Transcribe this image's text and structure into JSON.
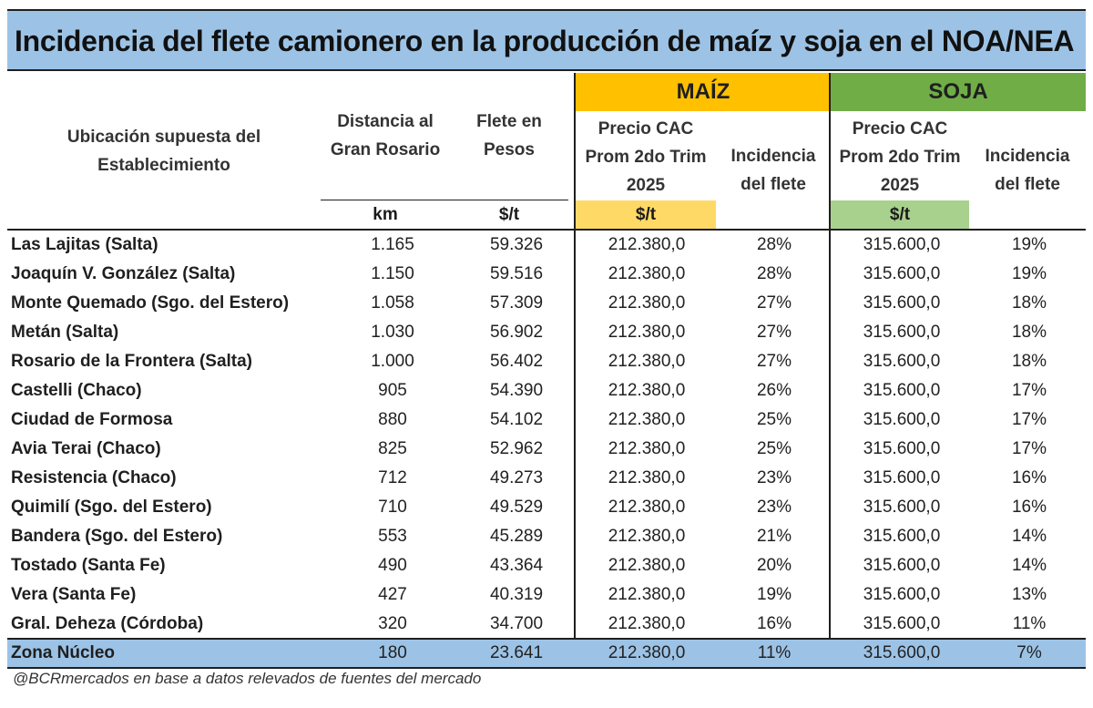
{
  "title": "Incidencia del flete camionero en la producción de maíz y soja en el NOA/NEA",
  "headers": {
    "ubicacion": [
      "Ubicación supuesta del",
      "Establecimiento"
    ],
    "distancia": [
      "Distancia al",
      "Gran Rosario"
    ],
    "flete": [
      "Flete en",
      "Pesos"
    ],
    "precio": [
      "Precio CAC",
      "Prom 2do Trim",
      "2025"
    ],
    "incidencia": [
      "Incidencia",
      "del flete"
    ],
    "maiz": "MAÍZ",
    "soja": "SOJA",
    "units": {
      "km": "km",
      "flete": "$/t",
      "precio_maiz": "$/t",
      "precio_soja": "$/t"
    }
  },
  "colors": {
    "title_bg": "#9cc3e6",
    "maiz_band": "#ffc000",
    "maiz_unit": "#ffd966",
    "soja_band": "#70ad47",
    "soja_unit": "#a9d18e",
    "highlight_row": "#9cc3e6"
  },
  "chart_data": {
    "type": "table",
    "columns": [
      "Ubicación supuesta del Establecimiento",
      "Distancia al Gran Rosario (km)",
      "Flete en Pesos ($/t)",
      "MAÍZ Precio CAC Prom 2do Trim 2025 ($/t)",
      "MAÍZ Incidencia del flete",
      "SOJA Precio CAC Prom 2do Trim 2025 ($/t)",
      "SOJA Incidencia del flete"
    ],
    "rows": [
      [
        "Las Lajitas (Salta)",
        "1.165",
        "59.326",
        "212.380,0",
        "28%",
        "315.600,0",
        "19%"
      ],
      [
        "Joaquín V. González (Salta)",
        "1.150",
        "59.516",
        "212.380,0",
        "28%",
        "315.600,0",
        "19%"
      ],
      [
        "Monte Quemado (Sgo. del Estero)",
        "1.058",
        "57.309",
        "212.380,0",
        "27%",
        "315.600,0",
        "18%"
      ],
      [
        "Metán (Salta)",
        "1.030",
        "56.902",
        "212.380,0",
        "27%",
        "315.600,0",
        "18%"
      ],
      [
        "Rosario de la Frontera (Salta)",
        "1.000",
        "56.402",
        "212.380,0",
        "27%",
        "315.600,0",
        "18%"
      ],
      [
        "Castelli (Chaco)",
        "905",
        "54.390",
        "212.380,0",
        "26%",
        "315.600,0",
        "17%"
      ],
      [
        "Ciudad de Formosa",
        "880",
        "54.102",
        "212.380,0",
        "25%",
        "315.600,0",
        "17%"
      ],
      [
        "Avia Terai (Chaco)",
        "825",
        "52.962",
        "212.380,0",
        "25%",
        "315.600,0",
        "17%"
      ],
      [
        "Resistencia (Chaco)",
        "712",
        "49.273",
        "212.380,0",
        "23%",
        "315.600,0",
        "16%"
      ],
      [
        "Quimilí (Sgo. del Estero)",
        "710",
        "49.529",
        "212.380,0",
        "23%",
        "315.600,0",
        "16%"
      ],
      [
        "Bandera (Sgo. del Estero)",
        "553",
        "45.289",
        "212.380,0",
        "21%",
        "315.600,0",
        "14%"
      ],
      [
        "Tostado (Santa Fe)",
        "490",
        "43.364",
        "212.380,0",
        "20%",
        "315.600,0",
        "14%"
      ],
      [
        "Vera (Santa Fe)",
        "427",
        "40.319",
        "212.380,0",
        "19%",
        "315.600,0",
        "13%"
      ],
      [
        "Gral. Deheza (Córdoba)",
        "320",
        "34.700",
        "212.380,0",
        "16%",
        "315.600,0",
        "11%"
      ]
    ],
    "summary_row": [
      "Zona Núcleo",
      "180",
      "23.641",
      "212.380,0",
      "11%",
      "315.600,0",
      "7%"
    ]
  },
  "footer": "@BCRmercados en base a datos relevados de fuentes del mercado"
}
